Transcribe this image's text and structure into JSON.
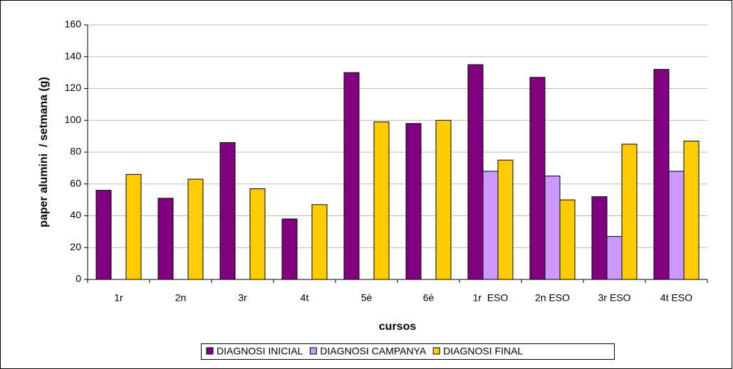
{
  "chart_data": {
    "type": "bar",
    "y_label": "paper alumini  / setmana (g)",
    "x_label": "cursos",
    "categories": [
      "1r",
      "2n",
      "3r",
      "4t",
      "5è",
      "6è",
      "1r  ESO",
      "2n ESO",
      "3r ESO",
      "4t ESO"
    ],
    "series": [
      {
        "name": "DIAGNOSI INICIAL",
        "color": "#800080",
        "values": [
          56,
          51,
          86,
          38,
          130,
          98,
          135,
          127,
          52,
          132
        ]
      },
      {
        "name": "DIAGNOSI CAMPANYA",
        "color": "#cc99ff",
        "values": [
          null,
          null,
          null,
          null,
          null,
          null,
          68,
          65,
          27,
          68
        ]
      },
      {
        "name": "DIAGNOSI FINAL",
        "color": "#ffcc00",
        "values": [
          66,
          63,
          57,
          47,
          99,
          100,
          75,
          50,
          85,
          87
        ]
      }
    ],
    "ylim": [
      0,
      160
    ],
    "yticks": [
      0,
      20,
      40,
      60,
      80,
      100,
      120,
      140,
      160
    ],
    "grid": true,
    "legend": "bottom"
  }
}
